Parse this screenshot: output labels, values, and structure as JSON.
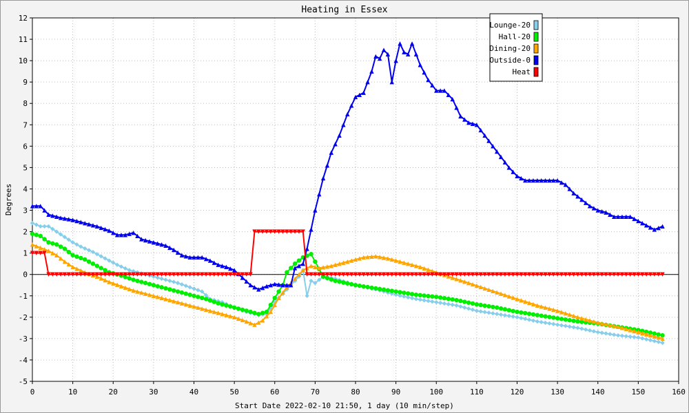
{
  "chart_data": {
    "type": "line",
    "title": "Heating in Essex",
    "xlabel": "Start Date 2022-02-10 21:50, 1 day (10 min/step)",
    "ylabel": "Degrees",
    "xlim": [
      0,
      160
    ],
    "ylim": [
      -5,
      12
    ],
    "x_ticks": [
      0,
      10,
      20,
      30,
      40,
      50,
      60,
      70,
      80,
      90,
      100,
      110,
      120,
      130,
      140,
      150,
      160
    ],
    "y_ticks": [
      -5,
      -4,
      -3,
      -2,
      -1,
      0,
      1,
      2,
      3,
      4,
      5,
      6,
      7,
      8,
      9,
      10,
      11,
      12
    ],
    "grid": true,
    "legend_position": "top-right",
    "series": [
      {
        "name": "Lounge-20",
        "color": "#87ceeb",
        "marker": "diamond",
        "points": [
          [
            0,
            2.4
          ],
          [
            2,
            2.25
          ],
          [
            4,
            2.25
          ],
          [
            6,
            2.0
          ],
          [
            8,
            1.75
          ],
          [
            10,
            1.5
          ],
          [
            12,
            1.3
          ],
          [
            15,
            1.05
          ],
          [
            18,
            0.75
          ],
          [
            21,
            0.45
          ],
          [
            24,
            0.2
          ],
          [
            27,
            0.05
          ],
          [
            30,
            -0.1
          ],
          [
            33,
            -0.25
          ],
          [
            36,
            -0.4
          ],
          [
            39,
            -0.6
          ],
          [
            42,
            -0.8
          ],
          [
            44,
            -1.15
          ],
          [
            47,
            -1.3
          ],
          [
            50,
            -1.55
          ],
          [
            53,
            -1.75
          ],
          [
            56,
            -1.9
          ],
          [
            58,
            -1.85
          ],
          [
            60,
            -1.3
          ],
          [
            62,
            -0.9
          ],
          [
            64,
            -0.5
          ],
          [
            66,
            -0.1
          ],
          [
            67,
            0.2
          ],
          [
            68,
            -1.0
          ],
          [
            69,
            -0.3
          ],
          [
            70,
            -0.4
          ],
          [
            72,
            -0.1
          ],
          [
            75,
            -0.2
          ],
          [
            80,
            -0.5
          ],
          [
            85,
            -0.7
          ],
          [
            90,
            -0.95
          ],
          [
            95,
            -1.15
          ],
          [
            100,
            -1.3
          ],
          [
            105,
            -1.45
          ],
          [
            110,
            -1.7
          ],
          [
            115,
            -1.85
          ],
          [
            120,
            -2.0
          ],
          [
            125,
            -2.2
          ],
          [
            130,
            -2.35
          ],
          [
            135,
            -2.5
          ],
          [
            140,
            -2.7
          ],
          [
            145,
            -2.85
          ],
          [
            150,
            -2.95
          ],
          [
            156,
            -3.2
          ]
        ]
      },
      {
        "name": "Hall-20",
        "color": "#00ee00",
        "marker": "circle",
        "points": [
          [
            0,
            1.9
          ],
          [
            2,
            1.8
          ],
          [
            4,
            1.5
          ],
          [
            6,
            1.4
          ],
          [
            8,
            1.2
          ],
          [
            10,
            0.9
          ],
          [
            13,
            0.7
          ],
          [
            16,
            0.4
          ],
          [
            19,
            0.1
          ],
          [
            22,
            -0.05
          ],
          [
            25,
            -0.25
          ],
          [
            28,
            -0.4
          ],
          [
            31,
            -0.55
          ],
          [
            34,
            -0.7
          ],
          [
            37,
            -0.85
          ],
          [
            40,
            -1.0
          ],
          [
            43,
            -1.15
          ],
          [
            46,
            -1.35
          ],
          [
            50,
            -1.55
          ],
          [
            53,
            -1.7
          ],
          [
            56,
            -1.85
          ],
          [
            58,
            -1.75
          ],
          [
            60,
            -1.1
          ],
          [
            62,
            -0.5
          ],
          [
            63,
            0.1
          ],
          [
            65,
            0.5
          ],
          [
            67,
            0.8
          ],
          [
            69,
            0.95
          ],
          [
            70,
            0.6
          ],
          [
            72,
            -0.1
          ],
          [
            75,
            -0.3
          ],
          [
            80,
            -0.5
          ],
          [
            85,
            -0.65
          ],
          [
            90,
            -0.8
          ],
          [
            95,
            -0.95
          ],
          [
            100,
            -1.05
          ],
          [
            105,
            -1.2
          ],
          [
            110,
            -1.4
          ],
          [
            115,
            -1.55
          ],
          [
            120,
            -1.75
          ],
          [
            125,
            -1.9
          ],
          [
            130,
            -2.05
          ],
          [
            135,
            -2.2
          ],
          [
            140,
            -2.3
          ],
          [
            145,
            -2.45
          ],
          [
            150,
            -2.6
          ],
          [
            156,
            -2.85
          ]
        ]
      },
      {
        "name": "Dining-20",
        "color": "#ffa500",
        "marker": "triangle",
        "points": [
          [
            0,
            1.4
          ],
          [
            2,
            1.25
          ],
          [
            4,
            1.1
          ],
          [
            6,
            0.9
          ],
          [
            8,
            0.6
          ],
          [
            10,
            0.35
          ],
          [
            13,
            0.1
          ],
          [
            16,
            -0.1
          ],
          [
            19,
            -0.35
          ],
          [
            22,
            -0.55
          ],
          [
            25,
            -0.75
          ],
          [
            28,
            -0.9
          ],
          [
            31,
            -1.05
          ],
          [
            34,
            -1.2
          ],
          [
            37,
            -1.35
          ],
          [
            40,
            -1.5
          ],
          [
            43,
            -1.65
          ],
          [
            46,
            -1.8
          ],
          [
            50,
            -2.0
          ],
          [
            53,
            -2.2
          ],
          [
            55,
            -2.35
          ],
          [
            57,
            -2.15
          ],
          [
            59,
            -1.75
          ],
          [
            61,
            -1.1
          ],
          [
            63,
            -0.6
          ],
          [
            65,
            -0.2
          ],
          [
            67,
            0.2
          ],
          [
            69,
            0.4
          ],
          [
            71,
            0.3
          ],
          [
            74,
            0.4
          ],
          [
            78,
            0.6
          ],
          [
            82,
            0.8
          ],
          [
            85,
            0.85
          ],
          [
            88,
            0.75
          ],
          [
            92,
            0.55
          ],
          [
            96,
            0.35
          ],
          [
            100,
            0.1
          ],
          [
            104,
            -0.15
          ],
          [
            108,
            -0.4
          ],
          [
            112,
            -0.65
          ],
          [
            116,
            -0.9
          ],
          [
            120,
            -1.15
          ],
          [
            125,
            -1.45
          ],
          [
            130,
            -1.7
          ],
          [
            135,
            -2.0
          ],
          [
            140,
            -2.25
          ],
          [
            145,
            -2.45
          ],
          [
            150,
            -2.7
          ],
          [
            156,
            -3.0
          ]
        ]
      },
      {
        "name": "Outside-0",
        "color": "#0000ee",
        "marker": "triangle",
        "points": [
          [
            0,
            3.2
          ],
          [
            2,
            3.2
          ],
          [
            4,
            2.8
          ],
          [
            7,
            2.65
          ],
          [
            10,
            2.55
          ],
          [
            13,
            2.4
          ],
          [
            16,
            2.25
          ],
          [
            19,
            2.05
          ],
          [
            21,
            1.85
          ],
          [
            23,
            1.85
          ],
          [
            25,
            1.95
          ],
          [
            27,
            1.65
          ],
          [
            30,
            1.5
          ],
          [
            33,
            1.35
          ],
          [
            35,
            1.15
          ],
          [
            37,
            0.9
          ],
          [
            39,
            0.8
          ],
          [
            42,
            0.8
          ],
          [
            44,
            0.65
          ],
          [
            46,
            0.45
          ],
          [
            48,
            0.35
          ],
          [
            50,
            0.2
          ],
          [
            52,
            -0.15
          ],
          [
            54,
            -0.5
          ],
          [
            56,
            -0.7
          ],
          [
            58,
            -0.55
          ],
          [
            60,
            -0.45
          ],
          [
            62,
            -0.5
          ],
          [
            64,
            -0.5
          ],
          [
            65,
            0.3
          ],
          [
            67,
            0.5
          ],
          [
            68,
            1.2
          ],
          [
            70,
            3.0
          ],
          [
            72,
            4.5
          ],
          [
            74,
            5.7
          ],
          [
            76,
            6.5
          ],
          [
            78,
            7.5
          ],
          [
            80,
            8.3
          ],
          [
            82,
            8.5
          ],
          [
            84,
            9.5
          ],
          [
            85,
            10.2
          ],
          [
            86,
            10.1
          ],
          [
            87,
            10.5
          ],
          [
            88,
            10.3
          ],
          [
            89,
            9.0
          ],
          [
            90,
            10.0
          ],
          [
            91,
            10.8
          ],
          [
            92,
            10.4
          ],
          [
            93,
            10.3
          ],
          [
            94,
            10.8
          ],
          [
            96,
            9.8
          ],
          [
            98,
            9.1
          ],
          [
            100,
            8.6
          ],
          [
            102,
            8.6
          ],
          [
            104,
            8.2
          ],
          [
            106,
            7.4
          ],
          [
            108,
            7.1
          ],
          [
            110,
            7.0
          ],
          [
            112,
            6.5
          ],
          [
            114,
            6.0
          ],
          [
            116,
            5.5
          ],
          [
            118,
            5.0
          ],
          [
            120,
            4.6
          ],
          [
            122,
            4.4
          ],
          [
            126,
            4.4
          ],
          [
            130,
            4.4
          ],
          [
            132,
            4.2
          ],
          [
            134,
            3.8
          ],
          [
            136,
            3.5
          ],
          [
            138,
            3.2
          ],
          [
            140,
            3.0
          ],
          [
            142,
            2.9
          ],
          [
            144,
            2.7
          ],
          [
            148,
            2.7
          ],
          [
            150,
            2.5
          ],
          [
            152,
            2.3
          ],
          [
            154,
            2.1
          ],
          [
            156,
            2.25
          ]
        ]
      },
      {
        "name": "Heat",
        "color": "#ff0000",
        "marker": "triangle-down",
        "points": [
          [
            0,
            1
          ],
          [
            3,
            1
          ],
          [
            4,
            0
          ],
          [
            54,
            0
          ],
          [
            55,
            2
          ],
          [
            67,
            2
          ],
          [
            68,
            0
          ],
          [
            156,
            0
          ]
        ]
      }
    ]
  }
}
